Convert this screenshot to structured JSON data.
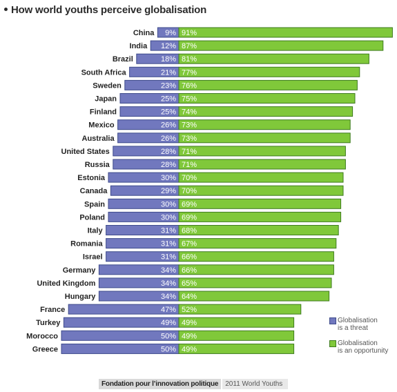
{
  "title": "How world youths perceive globalisation",
  "legend": {
    "threat_label": "Globalisation\nis a threat",
    "opportunity_label": "Globalisation\nis an opportunity"
  },
  "footer": {
    "source": "Fondation pour l’innovation politique",
    "survey": "2011 World Youths"
  },
  "colors": {
    "threat": "#7178be",
    "threat_border": "#3d4a8a",
    "opportunity": "#80c83a",
    "opportunity_border": "#3d7a1e"
  },
  "chart_data": {
    "type": "bar",
    "orientation": "horizontal-diverging",
    "categories": [
      "China",
      "India",
      "Brazil",
      "South Africa",
      "Sweden",
      "Japan",
      "Finland",
      "Mexico",
      "Australia",
      "United States",
      "Russia",
      "Estonia",
      "Canada",
      "Spain",
      "Poland",
      "Italy",
      "Romania",
      "Israel",
      "Germany",
      "United Kingdom",
      "Hungary",
      "France",
      "Turkey",
      "Morocco",
      "Greece"
    ],
    "series": [
      {
        "name": "Globalisation is a threat",
        "values": [
          9,
          12,
          18,
          21,
          23,
          25,
          25,
          26,
          26,
          28,
          28,
          30,
          29,
          30,
          30,
          31,
          31,
          31,
          34,
          34,
          34,
          47,
          49,
          50,
          50
        ]
      },
      {
        "name": "Globalisation is an opportunity",
        "values": [
          91,
          87,
          81,
          77,
          76,
          75,
          74,
          73,
          73,
          71,
          71,
          70,
          70,
          69,
          69,
          68,
          67,
          66,
          66,
          65,
          64,
          52,
          49,
          49,
          49
        ]
      }
    ],
    "value_suffix": "%",
    "legend_position": "bottom-right"
  }
}
